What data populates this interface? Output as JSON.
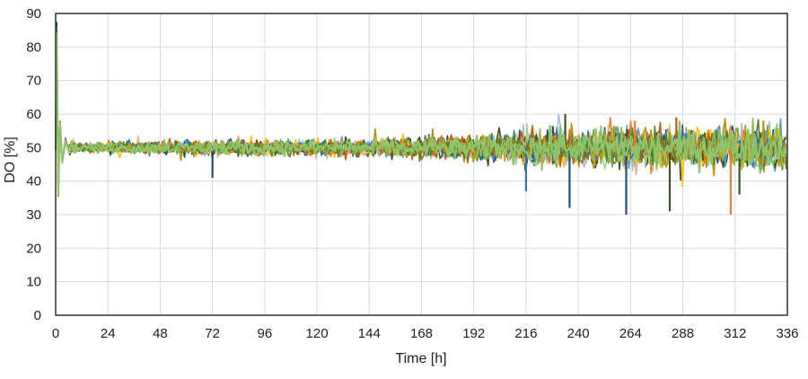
{
  "chart_data": {
    "type": "line",
    "title": "",
    "xlabel": "Time [h]",
    "ylabel": "DO [%]",
    "xlim": [
      0,
      336
    ],
    "ylim": [
      0,
      90
    ],
    "xticks": [
      0,
      24,
      48,
      72,
      96,
      120,
      144,
      168,
      192,
      216,
      240,
      264,
      288,
      312,
      336
    ],
    "yticks": [
      0,
      10,
      20,
      30,
      40,
      50,
      60,
      70,
      80,
      90
    ],
    "grid": true,
    "legend": "none",
    "baseline": 50,
    "series_colors": [
      "#1f4e79",
      "#5b9bd5",
      "#9dc3e6",
      "#ed7d31",
      "#f4b183",
      "#ffc000",
      "#375623",
      "#70ad47",
      "#a9d18e",
      "#2e75b6",
      "#c55a11",
      "#bf9000",
      "#548235",
      "#8fbc5a"
    ],
    "noise_envelope": [
      [
        0,
        2.0
      ],
      [
        10,
        1.0
      ],
      [
        48,
        1.4
      ],
      [
        96,
        1.6
      ],
      [
        144,
        1.8
      ],
      [
        192,
        2.6
      ],
      [
        216,
        3.4
      ],
      [
        240,
        4.0
      ],
      [
        288,
        4.4
      ],
      [
        336,
        4.2
      ]
    ],
    "start_transient": [
      [
        0,
        50
      ],
      [
        0.5,
        84
      ],
      [
        1.2,
        37
      ],
      [
        2.0,
        57
      ],
      [
        3.0,
        46
      ],
      [
        4.5,
        52
      ],
      [
        6.0,
        49
      ]
    ],
    "notable_values": [
      {
        "x": 72,
        "y": 41
      },
      {
        "x": 216,
        "y": 37
      },
      {
        "x": 234,
        "y": 60
      },
      {
        "x": 236,
        "y": 32
      },
      {
        "x": 262,
        "y": 30
      },
      {
        "x": 266,
        "y": 58
      },
      {
        "x": 282,
        "y": 31
      },
      {
        "x": 285,
        "y": 59
      },
      {
        "x": 310,
        "y": 30
      },
      {
        "x": 314,
        "y": 36
      },
      {
        "x": 325,
        "y": 58
      }
    ]
  }
}
